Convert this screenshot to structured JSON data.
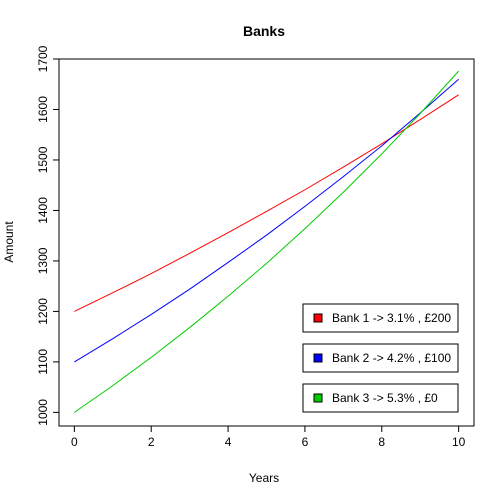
{
  "chart_data": {
    "type": "line",
    "title": "Banks",
    "xlabel": "Years",
    "ylabel": "Amount",
    "xlim": [
      -0.4,
      10.4
    ],
    "ylim": [
      973,
      1700
    ],
    "xticks": [
      0,
      2,
      4,
      6,
      8,
      10
    ],
    "yticks": [
      1000,
      1100,
      1200,
      1300,
      1400,
      1500,
      1600,
      1700
    ],
    "grid": false,
    "legend_placement": "bottom-right",
    "x": [
      0,
      1,
      2,
      3,
      4,
      5,
      6,
      7,
      8,
      9,
      10
    ],
    "series": [
      {
        "name": "Bank 1 -> 3.1% , £200",
        "color": "#ff0000",
        "values": [
          1200,
          1237,
          1275,
          1315,
          1356,
          1398,
          1441,
          1486,
          1532,
          1580,
          1629
        ]
      },
      {
        "name": "Bank 2 -> 4.2% , £100",
        "color": "#0000ff",
        "values": [
          1100,
          1146,
          1194,
          1244,
          1297,
          1351,
          1408,
          1467,
          1528,
          1593,
          1660
        ]
      },
      {
        "name": "Bank 3 -> 5.3% , £0",
        "color": "#00cc00",
        "values": [
          1000,
          1053,
          1109,
          1168,
          1230,
          1295,
          1364,
          1436,
          1512,
          1592,
          1676
        ]
      }
    ]
  }
}
